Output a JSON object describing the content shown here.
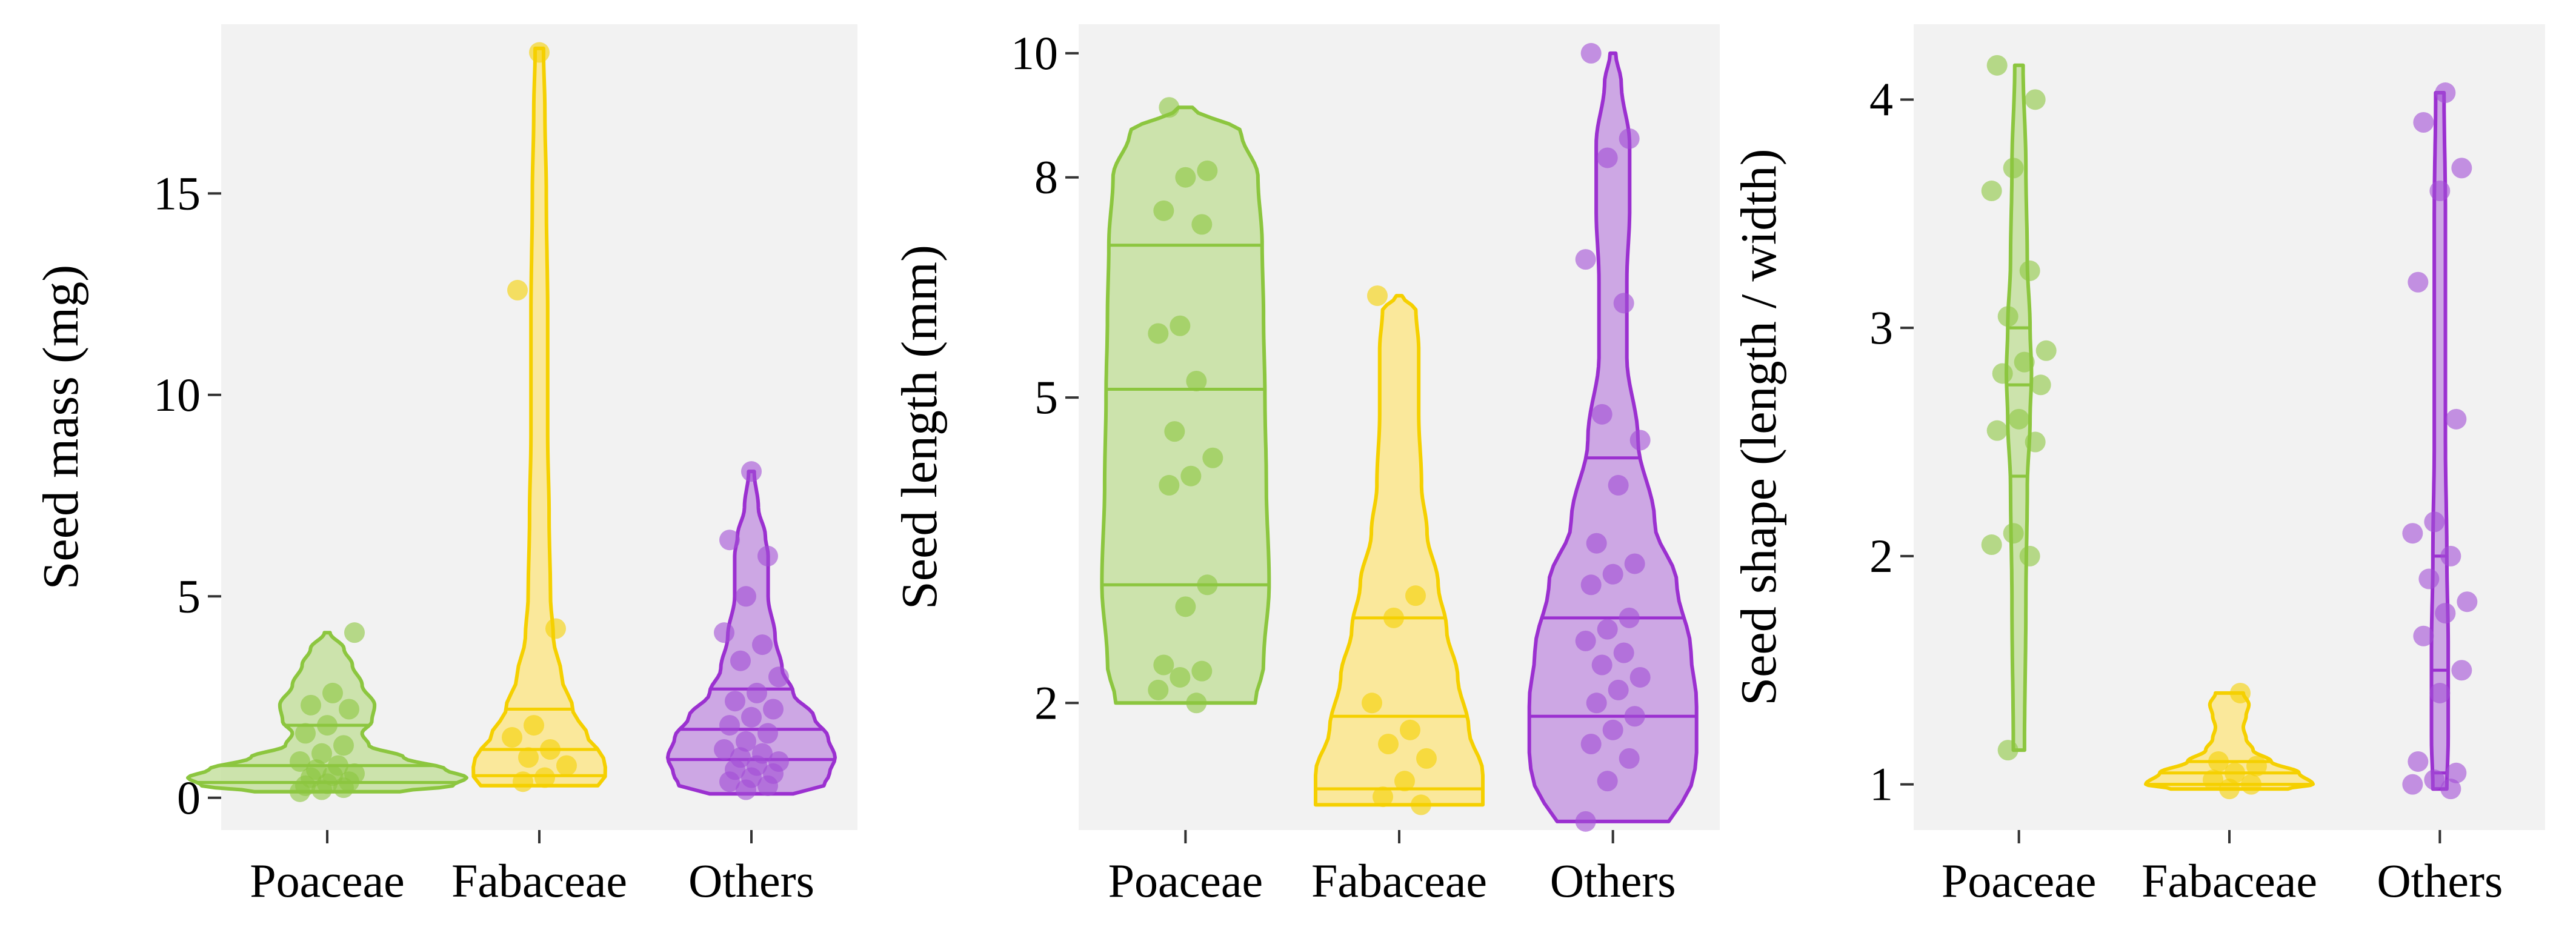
{
  "chart_data": [
    {
      "type": "violin",
      "ylabel": "Seed mass (mg)",
      "xlabel": "",
      "categories": [
        "Poaceae",
        "Fabaceae",
        "Others"
      ],
      "ylim": [
        -0.8,
        19.2
      ],
      "yticks": [
        0,
        5,
        10,
        15
      ],
      "ytick_labels": [
        "0",
        "5",
        "10",
        "15"
      ],
      "scale": "linear",
      "series": [
        {
          "name": "Poaceae",
          "range": [
            0.15,
            4.1
          ],
          "quantiles": [
            0.38,
            0.8,
            1.8
          ],
          "density": [
            [
              0.15,
              0.52
            ],
            [
              0.3,
              0.9
            ],
            [
              0.5,
              1.0
            ],
            [
              0.7,
              0.85
            ],
            [
              1.0,
              0.55
            ],
            [
              1.3,
              0.3
            ],
            [
              1.6,
              0.25
            ],
            [
              1.9,
              0.32
            ],
            [
              2.3,
              0.34
            ],
            [
              2.8,
              0.25
            ],
            [
              3.3,
              0.18
            ],
            [
              3.7,
              0.12
            ],
            [
              4.1,
              0.02
            ]
          ],
          "points": [
            0.15,
            0.2,
            0.25,
            0.3,
            0.35,
            0.4,
            0.5,
            0.55,
            0.6,
            0.7,
            0.8,
            0.9,
            1.1,
            1.3,
            1.6,
            1.8,
            2.2,
            2.3,
            2.6,
            4.1
          ]
        },
        {
          "name": "Fabaceae",
          "range": [
            0.3,
            18.6
          ],
          "quantiles": [
            0.55,
            1.2,
            2.2
          ],
          "density": [
            [
              0.3,
              0.42
            ],
            [
              0.6,
              0.48
            ],
            [
              1.0,
              0.46
            ],
            [
              1.5,
              0.35
            ],
            [
              2.2,
              0.24
            ],
            [
              3.0,
              0.16
            ],
            [
              4.0,
              0.1
            ],
            [
              5.0,
              0.08
            ],
            [
              7.0,
              0.07
            ],
            [
              9.0,
              0.06
            ],
            [
              12.0,
              0.06
            ],
            [
              15.0,
              0.05
            ],
            [
              17.0,
              0.04
            ],
            [
              18.6,
              0.03
            ]
          ],
          "points": [
            0.4,
            0.5,
            0.8,
            1.0,
            1.2,
            1.5,
            1.8,
            4.2,
            12.6,
            18.5
          ]
        },
        {
          "name": "Others",
          "range": [
            0.1,
            8.1
          ],
          "quantiles": [
            0.95,
            1.7,
            2.7
          ],
          "density": [
            [
              0.1,
              0.3
            ],
            [
              0.3,
              0.52
            ],
            [
              0.6,
              0.56
            ],
            [
              1.0,
              0.6
            ],
            [
              1.5,
              0.55
            ],
            [
              2.0,
              0.45
            ],
            [
              2.6,
              0.3
            ],
            [
              3.2,
              0.22
            ],
            [
              4.0,
              0.17
            ],
            [
              5.0,
              0.12
            ],
            [
              6.0,
              0.12
            ],
            [
              6.5,
              0.1
            ],
            [
              7.2,
              0.05
            ],
            [
              8.1,
              0.02
            ]
          ],
          "points": [
            0.2,
            0.3,
            0.4,
            0.5,
            0.6,
            0.7,
            0.8,
            0.9,
            1.0,
            1.1,
            1.2,
            1.4,
            1.6,
            1.8,
            2.0,
            2.2,
            2.4,
            2.6,
            3.0,
            3.4,
            3.8,
            4.1,
            5.0,
            6.0,
            6.4,
            8.1
          ]
        }
      ]
    },
    {
      "type": "violin",
      "ylabel": "Seed length (mm)",
      "xlabel": "",
      "categories": [
        "Poaceae",
        "Fabaceae",
        "Others"
      ],
      "ylim": [
        1.15,
        10.5
      ],
      "yticks": [
        2,
        5,
        8,
        10
      ],
      "ytick_labels": [
        "2",
        "5",
        "8",
        "10"
      ],
      "scale": "sqrt",
      "series": [
        {
          "name": "Poaceae",
          "range": [
            2.0,
            9.1
          ],
          "quantiles": [
            3.0,
            5.1,
            7.0
          ],
          "density": [
            [
              2.0,
              0.5
            ],
            [
              2.3,
              0.56
            ],
            [
              3.0,
              0.6
            ],
            [
              4.0,
              0.58
            ],
            [
              5.0,
              0.57
            ],
            [
              6.0,
              0.56
            ],
            [
              7.0,
              0.55
            ],
            [
              8.0,
              0.52
            ],
            [
              8.7,
              0.4
            ],
            [
              9.1,
              0.05
            ]
          ],
          "points": [
            2.0,
            2.1,
            2.2,
            2.25,
            2.3,
            2.8,
            3.0,
            4.0,
            4.1,
            4.3,
            4.6,
            5.2,
            5.8,
            5.9,
            7.3,
            7.5,
            8.0,
            8.1,
            9.1
          ]
        },
        {
          "name": "Fabaceae",
          "range": [
            1.3,
            6.3
          ],
          "quantiles": [
            1.4,
            1.9,
            2.7
          ],
          "density": [
            [
              1.3,
              0.6
            ],
            [
              1.5,
              0.6
            ],
            [
              1.8,
              0.5
            ],
            [
              2.2,
              0.42
            ],
            [
              2.6,
              0.34
            ],
            [
              3.0,
              0.28
            ],
            [
              3.5,
              0.2
            ],
            [
              4.0,
              0.16
            ],
            [
              4.8,
              0.14
            ],
            [
              5.6,
              0.14
            ],
            [
              6.1,
              0.12
            ],
            [
              6.3,
              0.02
            ]
          ],
          "points": [
            1.3,
            1.35,
            1.45,
            1.6,
            1.7,
            1.8,
            2.0,
            2.7,
            2.9,
            6.3
          ]
        },
        {
          "name": "Others",
          "range": [
            1.2,
            10.0
          ],
          "quantiles": [
            1.9,
            2.7,
            4.3
          ],
          "density": [
            [
              1.2,
              0.4
            ],
            [
              1.4,
              0.56
            ],
            [
              1.6,
              0.6
            ],
            [
              2.0,
              0.6
            ],
            [
              2.4,
              0.56
            ],
            [
              3.0,
              0.46
            ],
            [
              3.6,
              0.3
            ],
            [
              4.5,
              0.18
            ],
            [
              5.5,
              0.1
            ],
            [
              6.5,
              0.1
            ],
            [
              7.5,
              0.12
            ],
            [
              8.5,
              0.12
            ],
            [
              9.5,
              0.06
            ],
            [
              10.0,
              0.02
            ]
          ],
          "points": [
            1.2,
            1.45,
            1.6,
            1.7,
            1.8,
            1.9,
            2.0,
            2.1,
            2.2,
            2.3,
            2.4,
            2.5,
            2.6,
            2.7,
            3.0,
            3.1,
            3.2,
            3.4,
            4.0,
            4.5,
            4.8,
            6.2,
            6.8,
            8.3,
            8.6,
            10.0
          ]
        }
      ]
    },
    {
      "type": "violin",
      "ylabel": "Seed shape (length / width)",
      "xlabel": "",
      "categories": [
        "Poaceae",
        "Fabaceae",
        "Others"
      ],
      "ylim": [
        0.8,
        4.33
      ],
      "yticks": [
        1,
        2,
        3,
        4
      ],
      "ytick_labels": [
        "1",
        "2",
        "3",
        "4"
      ],
      "scale": "linear",
      "series": [
        {
          "name": "Poaceae",
          "range": [
            1.15,
            4.15
          ],
          "quantiles": [
            2.35,
            2.75,
            3.0
          ],
          "density": [
            [
              1.15,
              0.04
            ],
            [
              1.8,
              0.05
            ],
            [
              2.3,
              0.06
            ],
            [
              2.6,
              0.08
            ],
            [
              2.8,
              0.09
            ],
            [
              3.0,
              0.08
            ],
            [
              3.3,
              0.06
            ],
            [
              3.7,
              0.05
            ],
            [
              4.15,
              0.03
            ]
          ],
          "points": [
            1.15,
            2.0,
            2.05,
            2.1,
            2.5,
            2.55,
            2.6,
            2.75,
            2.8,
            2.85,
            2.9,
            3.05,
            3.25,
            3.6,
            3.7,
            4.0,
            4.15
          ]
        },
        {
          "name": "Fabaceae",
          "range": [
            0.98,
            1.4
          ],
          "quantiles": [
            1.0,
            1.05,
            1.1
          ],
          "density": [
            [
              0.98,
              0.42
            ],
            [
              1.0,
              0.6
            ],
            [
              1.05,
              0.5
            ],
            [
              1.1,
              0.3
            ],
            [
              1.15,
              0.17
            ],
            [
              1.2,
              0.12
            ],
            [
              1.25,
              0.1
            ],
            [
              1.3,
              0.12
            ],
            [
              1.35,
              0.14
            ],
            [
              1.4,
              0.1
            ]
          ],
          "points": [
            0.98,
            1.0,
            1.02,
            1.05,
            1.08,
            1.1,
            1.4
          ]
        },
        {
          "name": "Others",
          "range": [
            0.98,
            4.03
          ],
          "quantiles": [
            1.05,
            1.5,
            2.0
          ],
          "density": [
            [
              0.98,
              0.05
            ],
            [
              1.2,
              0.06
            ],
            [
              1.6,
              0.06
            ],
            [
              2.0,
              0.05
            ],
            [
              2.5,
              0.04
            ],
            [
              3.0,
              0.04
            ],
            [
              3.5,
              0.04
            ],
            [
              4.03,
              0.03
            ]
          ],
          "points": [
            0.98,
            1.0,
            1.02,
            1.05,
            1.1,
            1.4,
            1.5,
            1.65,
            1.75,
            1.8,
            1.9,
            2.0,
            2.1,
            2.15,
            2.6,
            3.2,
            3.6,
            3.7,
            3.9,
            4.03
          ]
        }
      ]
    }
  ],
  "colors": {
    "Poaceae": {
      "fill": "#c5e0a0",
      "line": "#8cc63f",
      "point": "#8cc63f"
    },
    "Fabaceae": {
      "fill": "#fbe68c",
      "line": "#f5d000",
      "point": "#f5d000"
    },
    "Others": {
      "fill": "#c79ae2",
      "line": "#9b30d0",
      "point": "#a24dd6"
    },
    "panel_background": "#f2f2f2"
  }
}
